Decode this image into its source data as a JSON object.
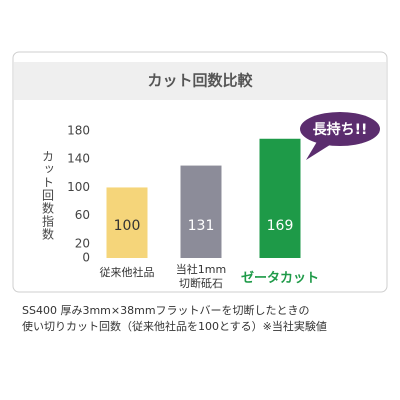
{
  "chart_data": {
    "type": "bar",
    "title": "カット回数比較",
    "y_label": "カット回数指数",
    "categories": [
      "従来他社品",
      "当社1mm\n切断砥石",
      "ゼータカット"
    ],
    "values": [
      100,
      131,
      169
    ],
    "colors": [
      "#f5d57a",
      "#8c8c99",
      "#1e9a48"
    ],
    "label_colors": [
      "#333333",
      "#333333",
      "#1e9a48"
    ],
    "ylim": [
      0,
      180
    ],
    "yticks": [
      0,
      20,
      60,
      100,
      140,
      180
    ],
    "annotation": "長持ち!!",
    "notes": [
      "SS400 厚み3mm×38mmフラットバーを切断したときの",
      "使い切りカット回数（従来他社品を100とする）※当社実験値"
    ]
  }
}
